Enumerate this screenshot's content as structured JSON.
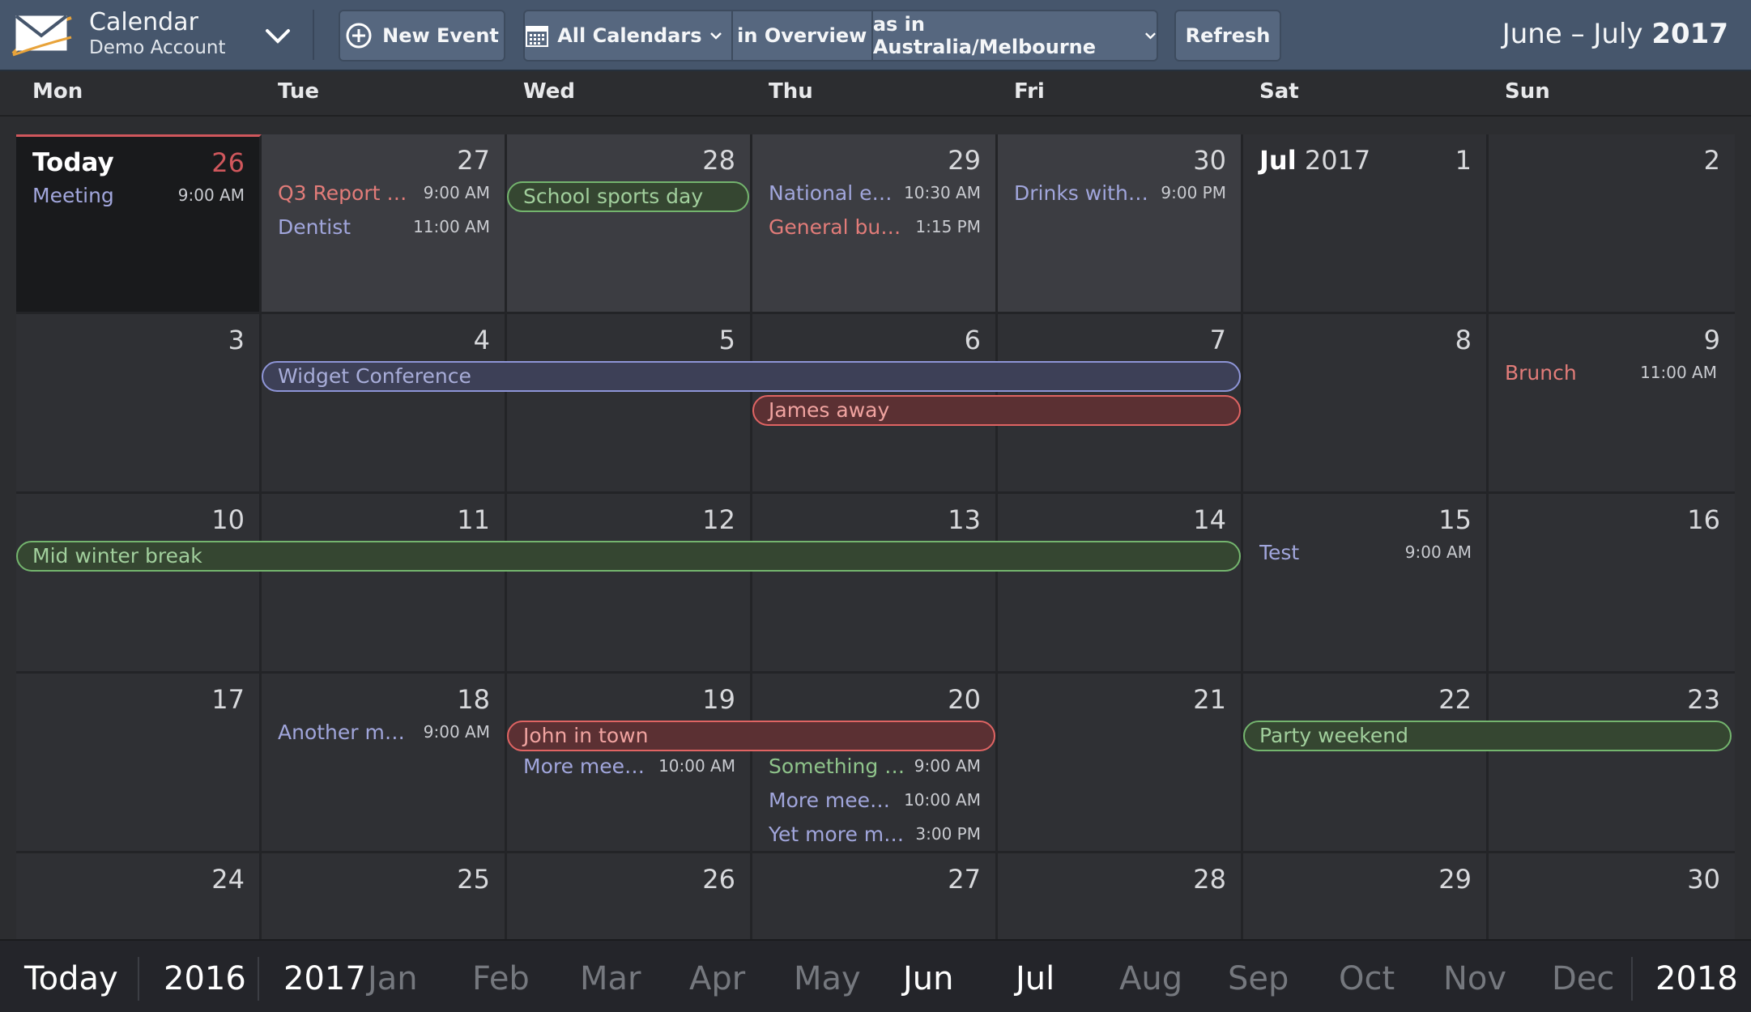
{
  "app": {
    "title": "Calendar",
    "account": "Demo Account"
  },
  "toolbar": {
    "new_event": "New Event",
    "calendars": "All Calendars",
    "view_mode": "in Overview",
    "timezone": "as in Australia/Melbourne",
    "refresh": "Refresh"
  },
  "range": {
    "months": "June – July",
    "year": "2017"
  },
  "weekdays": [
    "Mon",
    "Tue",
    "Wed",
    "Thu",
    "Fri",
    "Sat",
    "Sun"
  ],
  "weeks": [
    [
      {
        "label": "Today",
        "num": "26",
        "events": [
          {
            "title": "Meeting",
            "time": "9:00 AM"
          }
        ]
      },
      {
        "num": "27",
        "events": [
          {
            "title": "Q3 Report D…",
            "time": "9:00 AM"
          },
          {
            "title": "Dentist",
            "time": "11:00 AM"
          }
        ]
      },
      {
        "num": "28"
      },
      {
        "num": "29",
        "events": [
          {
            "title": "National e…",
            "time": "10:30 AM"
          },
          {
            "title": "General bus…",
            "time": "1:15 PM"
          }
        ]
      },
      {
        "num": "30",
        "events": [
          {
            "title": "Drinks with …",
            "time": "9:00 PM"
          }
        ]
      },
      {
        "month": "Jul",
        "year": "2017",
        "num": "1"
      },
      {
        "num": "2"
      }
    ],
    [
      {
        "num": "3"
      },
      {
        "num": "4"
      },
      {
        "num": "5"
      },
      {
        "num": "6"
      },
      {
        "num": "7"
      },
      {
        "num": "8"
      },
      {
        "num": "9",
        "events": [
          {
            "title": "Brunch",
            "time": "11:00 AM"
          }
        ]
      }
    ],
    [
      {
        "num": "10"
      },
      {
        "num": "11"
      },
      {
        "num": "12"
      },
      {
        "num": "13"
      },
      {
        "num": "14"
      },
      {
        "num": "15",
        "events": [
          {
            "title": "Test",
            "time": "9:00 AM"
          }
        ]
      },
      {
        "num": "16"
      }
    ],
    [
      {
        "num": "17"
      },
      {
        "num": "18",
        "events": [
          {
            "title": "Another me…",
            "time": "9:00 AM"
          }
        ]
      },
      {
        "num": "19",
        "events": [
          {
            "title": "More meeti…",
            "time": "10:00 AM"
          }
        ]
      },
      {
        "num": "20",
        "events": [
          {
            "title": "Something i…",
            "time": "9:00 AM"
          },
          {
            "title": "More meeti…",
            "time": "10:00 AM"
          },
          {
            "title": "Yet more me…",
            "time": "3:00 PM"
          }
        ]
      },
      {
        "num": "21"
      },
      {
        "num": "22"
      },
      {
        "num": "23"
      }
    ],
    [
      {
        "num": "24"
      },
      {
        "num": "25"
      },
      {
        "num": "26"
      },
      {
        "num": "27"
      },
      {
        "num": "28"
      },
      {
        "num": "29"
      },
      {
        "num": "30"
      }
    ]
  ],
  "spans": [
    {
      "title": "School sports day"
    },
    {
      "title": "Widget Conference"
    },
    {
      "title": "James away"
    },
    {
      "title": "Mid winter break"
    },
    {
      "title": "John in town"
    },
    {
      "title": "Party weekend"
    }
  ],
  "footer": {
    "today": "Today",
    "prev_year": "2016",
    "current_year": "2017",
    "months": [
      "Jan",
      "Feb",
      "Mar",
      "Apr",
      "May",
      "Jun",
      "Jul",
      "Aug",
      "Sep",
      "Oct",
      "Nov",
      "Dec"
    ],
    "next_year": "2018"
  },
  "colors": {
    "toolbar": "#46566c",
    "today_accent": "#d0575c",
    "event_blue": "#a1a6dc",
    "event_red": "#e27c79",
    "event_green": "#8fc48b"
  }
}
